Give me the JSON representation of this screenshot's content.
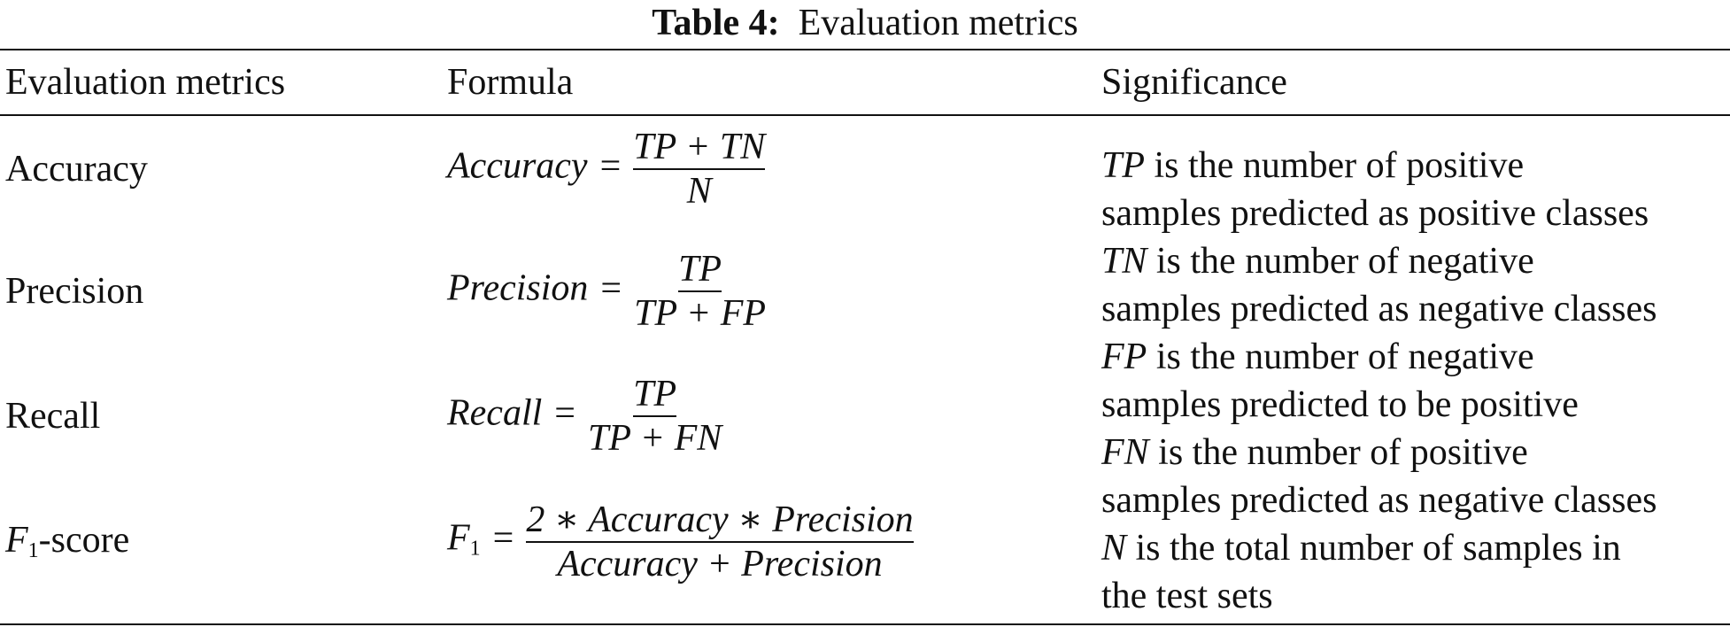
{
  "caption": {
    "label": "Table 4:",
    "text": "Evaluation metrics"
  },
  "table": {
    "headers": [
      "Evaluation metrics",
      "Formula",
      "Significance"
    ],
    "rows": [
      {
        "metric": "Accuracy",
        "formula": {
          "lhs": "Accuracy",
          "numerator": "TP + TN",
          "denominator": "N"
        }
      },
      {
        "metric": "Precision",
        "formula": {
          "lhs": "Precision",
          "numerator": "TP",
          "denominator": "TP + FP"
        }
      },
      {
        "metric": "Recall",
        "formula": {
          "lhs": "Recall",
          "numerator": "TP",
          "denominator": "TP + FN"
        }
      },
      {
        "metric": {
          "base": "F",
          "sub": "1",
          "rest": "-score"
        },
        "formula": {
          "lhs": {
            "base": "F",
            "sub": "1"
          },
          "numerator": "2 ∗ Accuracy ∗ Precision",
          "denominator": "Accuracy + Precision"
        }
      }
    ],
    "significance": [
      {
        "symbol": "TP",
        "lines": [
          "is the number of positive",
          "samples predicted as positive classes"
        ]
      },
      {
        "symbol": "TN",
        "lines": [
          "is the number of negative",
          "samples predicted as negative classes"
        ]
      },
      {
        "symbol": "FP",
        "lines": [
          "is the number of negative",
          "samples predicted to be positive"
        ]
      },
      {
        "symbol": "FN",
        "lines": [
          "is the number of positive",
          "samples predicted as negative classes"
        ]
      },
      {
        "symbol": "N",
        "lines": [
          "is the total number of samples in",
          "the test sets"
        ]
      }
    ]
  }
}
